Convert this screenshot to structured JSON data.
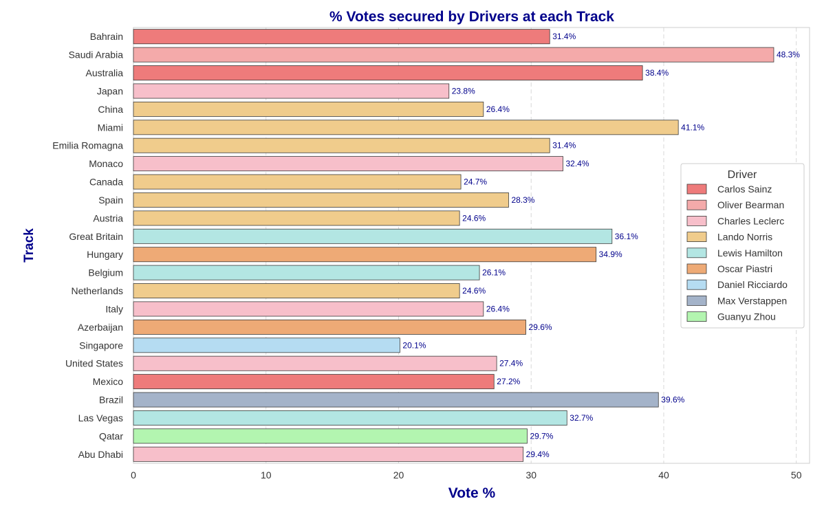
{
  "chart_data": {
    "type": "bar",
    "orientation": "horizontal",
    "title": "% Votes secured by Drivers at each Track",
    "xlabel": "Vote %",
    "ylabel": "Track",
    "xlim": [
      0,
      51
    ],
    "x_ticks": [
      0,
      10,
      20,
      30,
      40,
      50
    ],
    "grid": "vertical dashed",
    "legend_title": "Driver",
    "legend_position": "center-right",
    "drivers": [
      {
        "name": "Carlos Sainz",
        "color": "#ee7b7b"
      },
      {
        "name": "Oliver Bearman",
        "color": "#f4aaaa"
      },
      {
        "name": "Charles Leclerc",
        "color": "#f7bfca"
      },
      {
        "name": "Lando Norris",
        "color": "#f0cc8c"
      },
      {
        "name": "Lewis Hamilton",
        "color": "#b3e6e3"
      },
      {
        "name": "Oscar Piastri",
        "color": "#eeaa76"
      },
      {
        "name": "Daniel Ricciardo",
        "color": "#b5dcf2"
      },
      {
        "name": "Max Verstappen",
        "color": "#a4b3c9"
      },
      {
        "name": "Guanyu Zhou",
        "color": "#b3f5b0"
      }
    ],
    "bars": [
      {
        "track": "Bahrain",
        "value": 31.4,
        "label": "31.4%",
        "driver": "Carlos Sainz"
      },
      {
        "track": "Saudi Arabia",
        "value": 48.3,
        "label": "48.3%",
        "driver": "Oliver Bearman"
      },
      {
        "track": "Australia",
        "value": 38.4,
        "label": "38.4%",
        "driver": "Carlos Sainz"
      },
      {
        "track": "Japan",
        "value": 23.8,
        "label": "23.8%",
        "driver": "Charles Leclerc"
      },
      {
        "track": "China",
        "value": 26.4,
        "label": "26.4%",
        "driver": "Lando Norris"
      },
      {
        "track": "Miami",
        "value": 41.1,
        "label": "41.1%",
        "driver": "Lando Norris"
      },
      {
        "track": "Emilia Romagna",
        "value": 31.4,
        "label": "31.4%",
        "driver": "Lando Norris"
      },
      {
        "track": "Monaco",
        "value": 32.4,
        "label": "32.4%",
        "driver": "Charles Leclerc"
      },
      {
        "track": "Canada",
        "value": 24.7,
        "label": "24.7%",
        "driver": "Lando Norris"
      },
      {
        "track": "Spain",
        "value": 28.3,
        "label": "28.3%",
        "driver": "Lando Norris"
      },
      {
        "track": "Austria",
        "value": 24.6,
        "label": "24.6%",
        "driver": "Lando Norris"
      },
      {
        "track": "Great Britain",
        "value": 36.1,
        "label": "36.1%",
        "driver": "Lewis Hamilton"
      },
      {
        "track": "Hungary",
        "value": 34.9,
        "label": "34.9%",
        "driver": "Oscar Piastri"
      },
      {
        "track": "Belgium",
        "value": 26.1,
        "label": "26.1%",
        "driver": "Lewis Hamilton"
      },
      {
        "track": "Netherlands",
        "value": 24.6,
        "label": "24.6%",
        "driver": "Lando Norris"
      },
      {
        "track": "Italy",
        "value": 26.4,
        "label": "26.4%",
        "driver": "Charles Leclerc"
      },
      {
        "track": "Azerbaijan",
        "value": 29.6,
        "label": "29.6%",
        "driver": "Oscar Piastri"
      },
      {
        "track": "Singapore",
        "value": 20.1,
        "label": "20.1%",
        "driver": "Daniel Ricciardo"
      },
      {
        "track": "United States",
        "value": 27.4,
        "label": "27.4%",
        "driver": "Charles Leclerc"
      },
      {
        "track": "Mexico",
        "value": 27.2,
        "label": "27.2%",
        "driver": "Carlos Sainz"
      },
      {
        "track": "Brazil",
        "value": 39.6,
        "label": "39.6%",
        "driver": "Max Verstappen"
      },
      {
        "track": "Las Vegas",
        "value": 32.7,
        "label": "32.7%",
        "driver": "Lewis Hamilton"
      },
      {
        "track": "Qatar",
        "value": 29.7,
        "label": "29.7%",
        "driver": "Guanyu Zhou"
      },
      {
        "track": "Abu Dhabi",
        "value": 29.4,
        "label": "29.4%",
        "driver": "Charles Leclerc"
      }
    ]
  }
}
